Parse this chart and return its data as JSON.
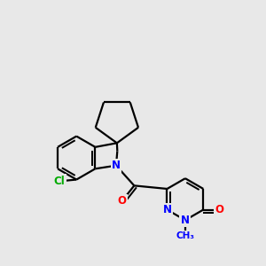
{
  "background_color": "#e8e8e8",
  "bond_color": "#000000",
  "bond_width": 1.6,
  "atom_colors": {
    "N": "#0000ff",
    "O": "#ff0000",
    "Cl": "#00aa00",
    "C": "#000000"
  },
  "font_size_atom": 8.5,
  "font_size_ch3": 7.5,
  "xlim": [
    0.0,
    6.5
  ],
  "ylim": [
    0.5,
    6.5
  ]
}
